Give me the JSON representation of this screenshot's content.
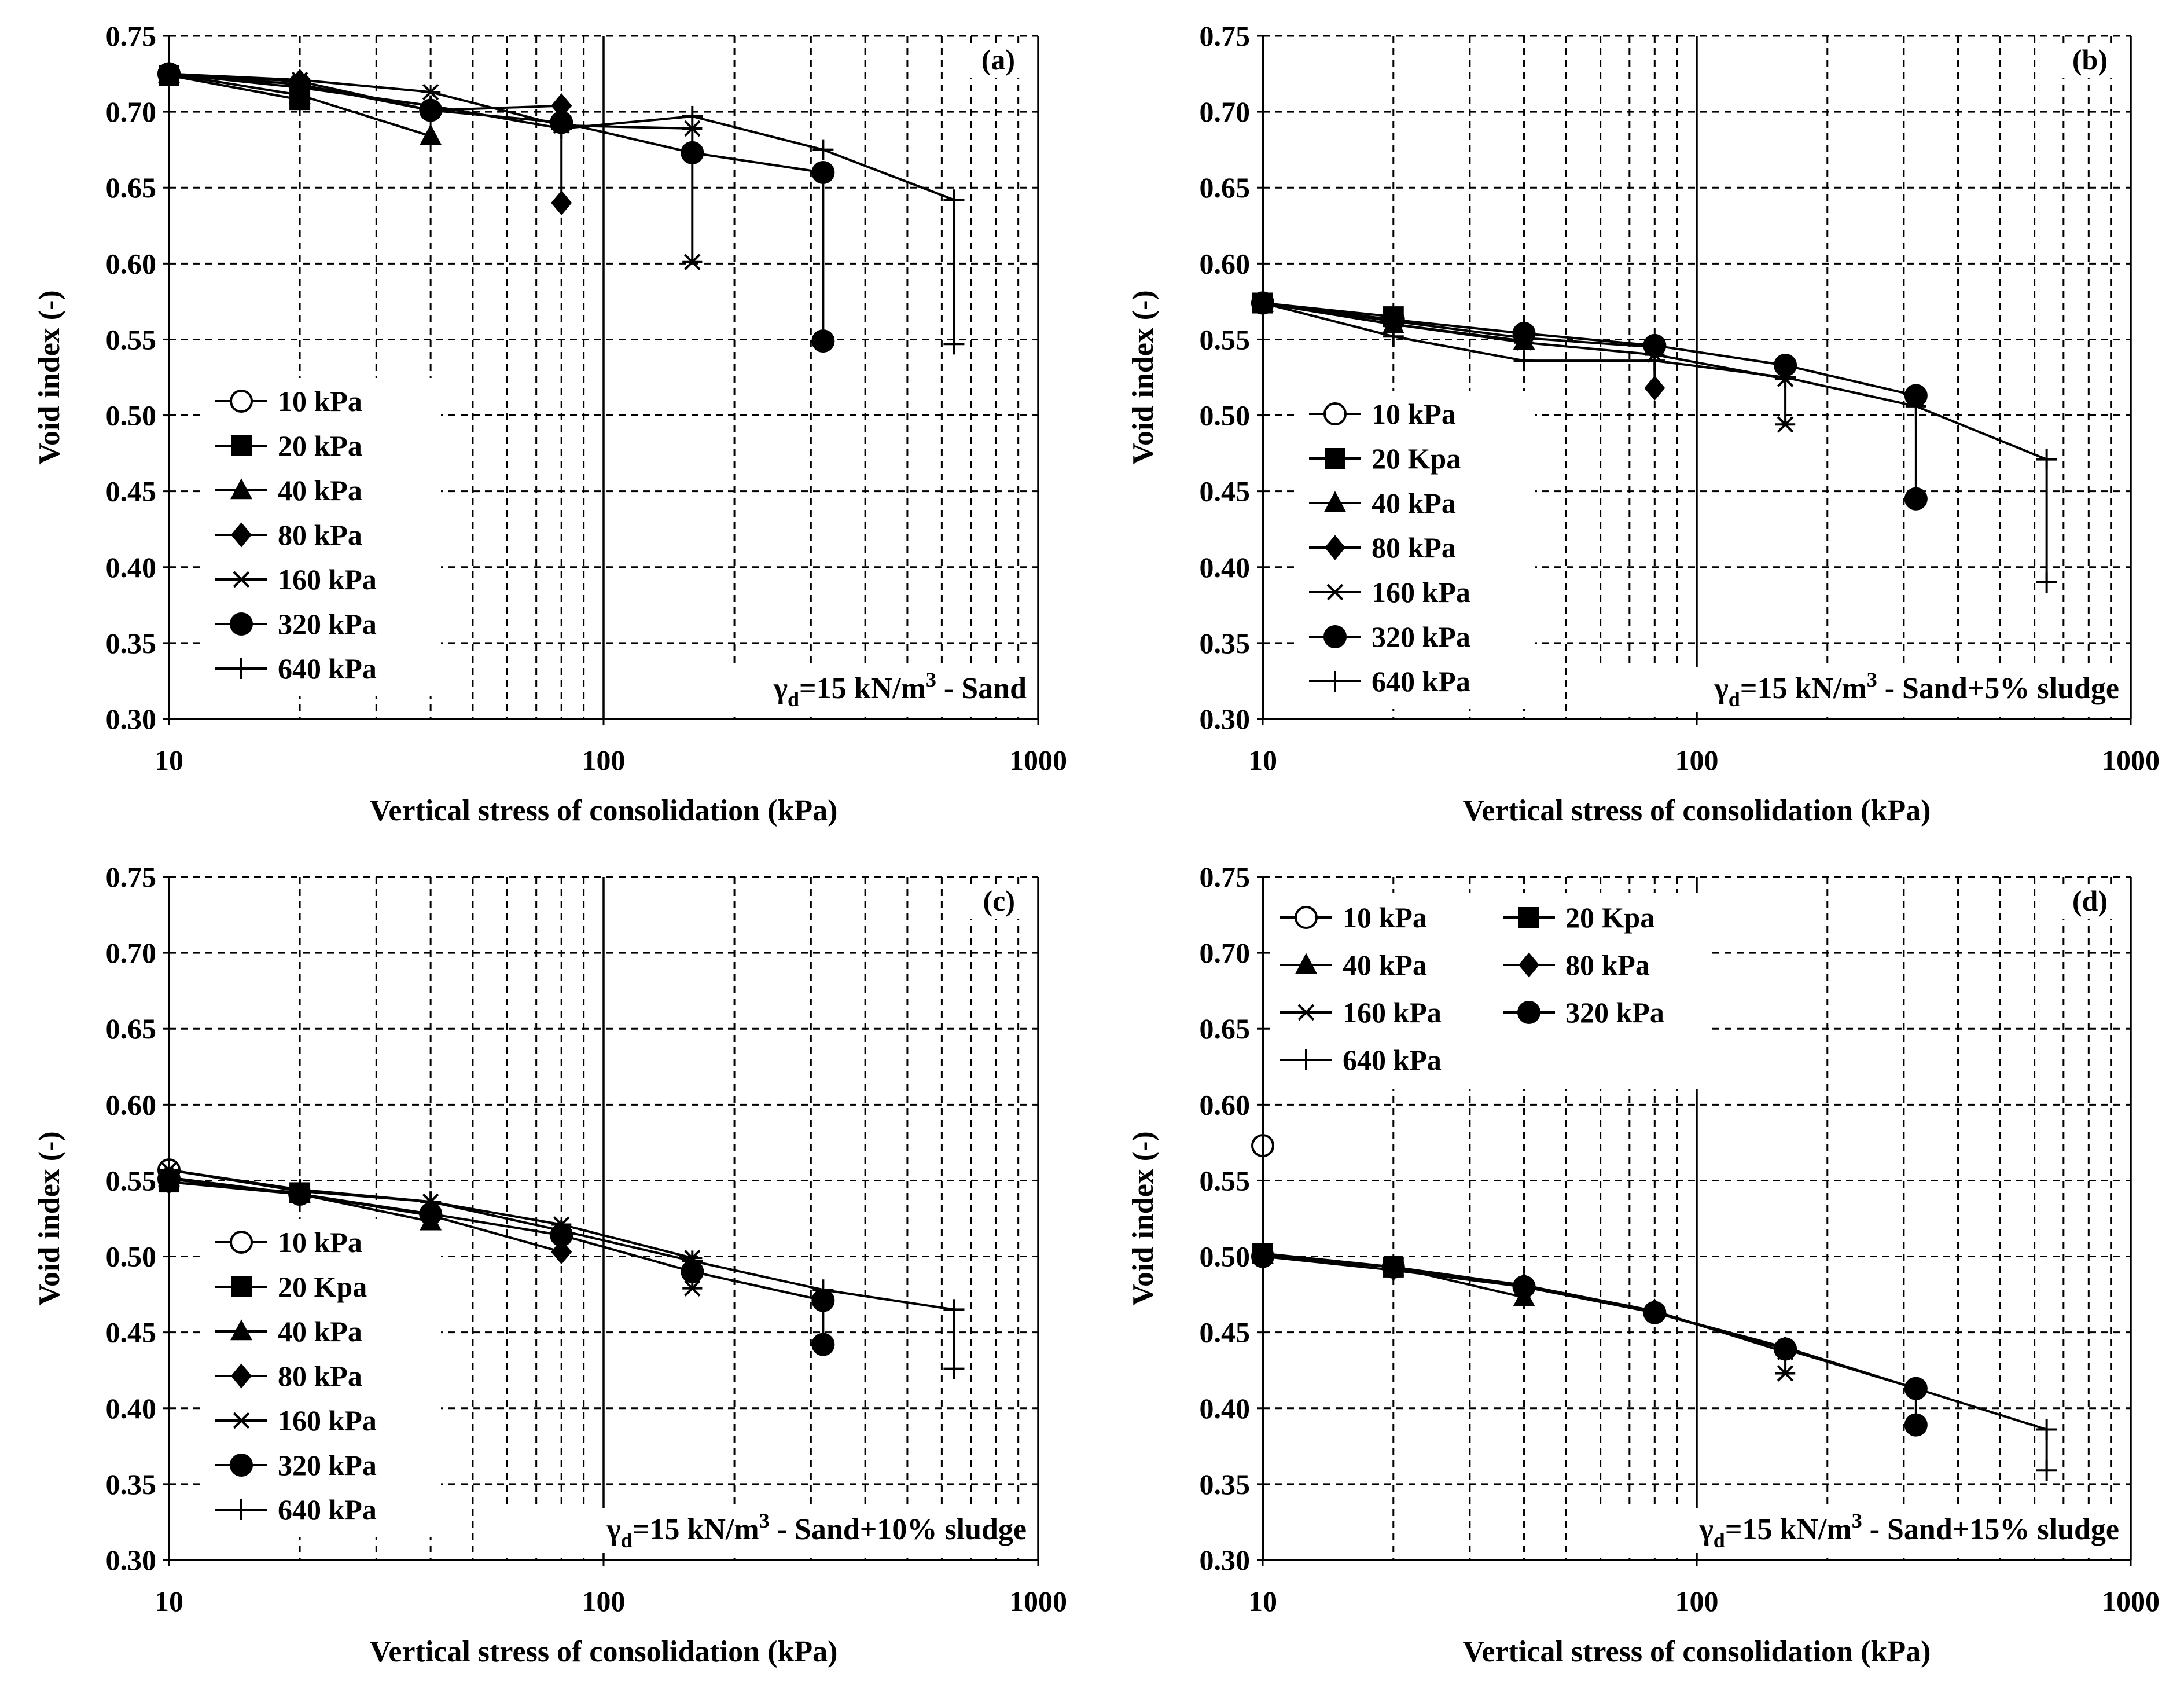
{
  "figure": {
    "x_axis_label": "Vertical stress of consolidation (kPa)",
    "y_axis_label": "Void index (-)"
  },
  "chart_data": [
    {
      "type": "line",
      "panel": "(a)",
      "annotation": {
        "prefix": "γ",
        "subscript": "d",
        "mid": "=15 kN/m",
        "superscript": "3",
        "suffix": " - Sand"
      },
      "xscale": "log",
      "xlim": [
        10,
        1000
      ],
      "ylim": [
        0.3,
        0.75
      ],
      "x_ticks": [
        "10",
        "100",
        "1000"
      ],
      "y_ticks": [
        "0.30",
        "0.35",
        "0.40",
        "0.45",
        "0.50",
        "0.55",
        "0.60",
        "0.65",
        "0.70",
        "0.75"
      ],
      "legend_layout": "column",
      "legend_position": "bottom-left",
      "series": [
        {
          "name": "10 kPa",
          "marker": "circle-open",
          "x": [
            10
          ],
          "y": [
            0.725
          ],
          "drop": null
        },
        {
          "name": "20 kPa",
          "marker": "square",
          "x": [
            10,
            20
          ],
          "y": [
            0.724,
            0.708
          ],
          "drop": null
        },
        {
          "name": "40 kPa",
          "marker": "triangle",
          "x": [
            10,
            20,
            40
          ],
          "y": [
            0.725,
            0.711,
            0.684
          ],
          "drop": null
        },
        {
          "name": "80 kPa",
          "marker": "diamond",
          "x": [
            10,
            20,
            40,
            80
          ],
          "y": [
            0.725,
            0.72,
            0.701,
            0.704
          ],
          "drop": [
            80,
            0.704,
            0.64
          ]
        },
        {
          "name": "160 kPa",
          "marker": "asterisk",
          "x": [
            10,
            20,
            40,
            80,
            160
          ],
          "y": [
            0.725,
            0.721,
            0.713,
            0.691,
            0.689
          ],
          "drop": [
            160,
            0.689,
            0.601
          ]
        },
        {
          "name": "320 kPa",
          "marker": "circle",
          "x": [
            10,
            20,
            40,
            80,
            160,
            320
          ],
          "y": [
            0.725,
            0.718,
            0.701,
            0.693,
            0.673,
            0.66
          ],
          "drop": [
            320,
            0.66,
            0.549
          ]
        },
        {
          "name": "640 kPa",
          "marker": "plus",
          "x": [
            10,
            20,
            40,
            80,
            160,
            320,
            640
          ],
          "y": [
            0.725,
            0.716,
            0.704,
            0.689,
            0.697,
            0.675,
            0.642
          ],
          "drop": [
            640,
            0.642,
            0.547
          ]
        }
      ]
    },
    {
      "type": "line",
      "panel": "(b)",
      "annotation": {
        "prefix": "γ",
        "subscript": "d",
        "mid": "=15 kN/m",
        "superscript": "3",
        "suffix": " - Sand+5% sludge"
      },
      "xscale": "log",
      "xlim": [
        10,
        1000
      ],
      "ylim": [
        0.3,
        0.75
      ],
      "x_ticks": [
        "10",
        "100",
        "1000"
      ],
      "y_ticks": [
        "0.30",
        "0.35",
        "0.40",
        "0.45",
        "0.50",
        "0.55",
        "0.60",
        "0.65",
        "0.70",
        "0.75"
      ],
      "legend_layout": "column",
      "legend_position": "bottom-left",
      "series": [
        {
          "name": "10 kPa",
          "marker": "circle-open",
          "x": [
            10
          ],
          "y": [
            0.574
          ],
          "drop": null
        },
        {
          "name": "20 Kpa",
          "marker": "square",
          "x": [
            10,
            20
          ],
          "y": [
            0.574,
            0.565
          ],
          "drop": null
        },
        {
          "name": "40 kPa",
          "marker": "triangle",
          "x": [
            10,
            20,
            40
          ],
          "y": [
            0.574,
            0.56,
            0.549
          ],
          "drop": null
        },
        {
          "name": "80 kPa",
          "marker": "diamond",
          "x": [
            10,
            20,
            40,
            80
          ],
          "y": [
            0.574,
            0.562,
            0.551,
            0.545
          ],
          "drop": [
            80,
            0.545,
            0.518
          ]
        },
        {
          "name": "160 kPa",
          "marker": "asterisk",
          "x": [
            10,
            20,
            40,
            80,
            160
          ],
          "y": [
            0.574,
            0.56,
            0.548,
            0.54,
            0.524
          ],
          "drop": [
            160,
            0.524,
            0.494
          ]
        },
        {
          "name": "320 kPa",
          "marker": "circle",
          "x": [
            10,
            20,
            40,
            80,
            160,
            320
          ],
          "y": [
            0.574,
            0.563,
            0.554,
            0.546,
            0.533,
            0.513
          ],
          "drop": [
            320,
            0.513,
            0.445
          ]
        },
        {
          "name": "640 kPa",
          "marker": "plus",
          "x": [
            10,
            20,
            40,
            80,
            160,
            320,
            640
          ],
          "y": [
            0.574,
            0.552,
            0.536,
            0.536,
            0.525,
            0.506,
            0.471
          ],
          "drop": [
            640,
            0.471,
            0.39
          ]
        }
      ]
    },
    {
      "type": "line",
      "panel": "(c)",
      "annotation": {
        "prefix": "γ",
        "subscript": "d",
        "mid": "=15 kN/m",
        "superscript": "3",
        "suffix": " - Sand+10% sludge"
      },
      "xscale": "log",
      "xlim": [
        10,
        1000
      ],
      "ylim": [
        0.3,
        0.75
      ],
      "x_ticks": [
        "10",
        "100",
        "1000"
      ],
      "y_ticks": [
        "0.30",
        "0.35",
        "0.40",
        "0.45",
        "0.50",
        "0.55",
        "0.60",
        "0.65",
        "0.70",
        "0.75"
      ],
      "legend_layout": "column",
      "legend_position": "bottom-left",
      "series": [
        {
          "name": "10 kPa",
          "marker": "circle-open",
          "x": [
            10
          ],
          "y": [
            0.557
          ],
          "drop": null
        },
        {
          "name": "20 Kpa",
          "marker": "square",
          "x": [
            10,
            20
          ],
          "y": [
            0.549,
            0.542
          ],
          "drop": null
        },
        {
          "name": "40 kPa",
          "marker": "triangle",
          "x": [
            10,
            20,
            40
          ],
          "y": [
            0.552,
            0.541,
            0.523
          ],
          "drop": null
        },
        {
          "name": "80 kPa",
          "marker": "diamond",
          "x": [
            10,
            20,
            40,
            80
          ],
          "y": [
            0.549,
            0.541,
            0.527,
            0.503
          ],
          "drop": null
        },
        {
          "name": "160 kPa",
          "marker": "asterisk",
          "x": [
            10,
            20,
            40,
            80,
            160
          ],
          "y": [
            0.557,
            0.543,
            0.536,
            0.521,
            0.499
          ],
          "drop": [
            160,
            0.499,
            0.479
          ]
        },
        {
          "name": "320 kPa",
          "marker": "circle",
          "x": [
            10,
            20,
            40,
            80,
            160,
            320
          ],
          "y": [
            0.551,
            0.541,
            0.528,
            0.514,
            0.49,
            0.471
          ],
          "drop": [
            320,
            0.471,
            0.442
          ]
        },
        {
          "name": "640 kPa",
          "marker": "plus",
          "x": [
            10,
            20,
            40,
            80,
            160,
            320,
            640
          ],
          "y": [
            0.557,
            0.544,
            0.536,
            0.517,
            0.497,
            0.478,
            0.465
          ],
          "drop": [
            640,
            0.465,
            0.426
          ]
        }
      ]
    },
    {
      "type": "line",
      "panel": "(d)",
      "annotation": {
        "prefix": "γ",
        "subscript": "d",
        "mid": "=15 kN/m",
        "superscript": "3",
        "suffix": " - Sand+15% sludge"
      },
      "xscale": "log",
      "xlim": [
        10,
        1000
      ],
      "ylim": [
        0.3,
        0.75
      ],
      "x_ticks": [
        "10",
        "100",
        "1000"
      ],
      "y_ticks": [
        "0.30",
        "0.35",
        "0.40",
        "0.45",
        "0.50",
        "0.55",
        "0.60",
        "0.65",
        "0.70",
        "0.75"
      ],
      "legend_layout": "two-column",
      "legend_position": "top-left",
      "series": [
        {
          "name": "10 kPa",
          "marker": "circle-open",
          "x": [
            10
          ],
          "y": [
            0.573
          ],
          "drop": null
        },
        {
          "name": "20 Kpa",
          "marker": "square",
          "x": [
            10,
            20
          ],
          "y": [
            0.502,
            0.493
          ],
          "drop": null
        },
        {
          "name": "40 kPa",
          "marker": "triangle",
          "x": [
            10,
            20,
            40
          ],
          "y": [
            0.501,
            0.493,
            0.473
          ],
          "drop": null
        },
        {
          "name": "80 kPa",
          "marker": "diamond",
          "x": [
            10,
            20,
            40,
            80
          ],
          "y": [
            0.5,
            0.493,
            0.481,
            0.464
          ],
          "drop": null
        },
        {
          "name": "160 kPa",
          "marker": "asterisk",
          "x": [
            10,
            20,
            40,
            80,
            160
          ],
          "y": [
            0.5,
            0.493,
            0.48,
            0.464,
            0.437
          ],
          "drop": [
            160,
            0.437,
            0.423
          ]
        },
        {
          "name": "320 kPa",
          "marker": "circle",
          "x": [
            10,
            20,
            40,
            80,
            160,
            320
          ],
          "y": [
            0.5,
            0.493,
            0.48,
            0.463,
            0.439,
            0.413
          ],
          "drop": [
            320,
            0.413,
            0.389
          ]
        },
        {
          "name": "640 kPa",
          "marker": "plus",
          "x": [
            10,
            20,
            40,
            80,
            160,
            320,
            640
          ],
          "y": [
            0.5,
            0.491,
            0.48,
            0.463,
            0.44,
            0.413,
            0.386
          ],
          "drop": [
            640,
            0.386,
            0.359
          ]
        }
      ]
    }
  ]
}
